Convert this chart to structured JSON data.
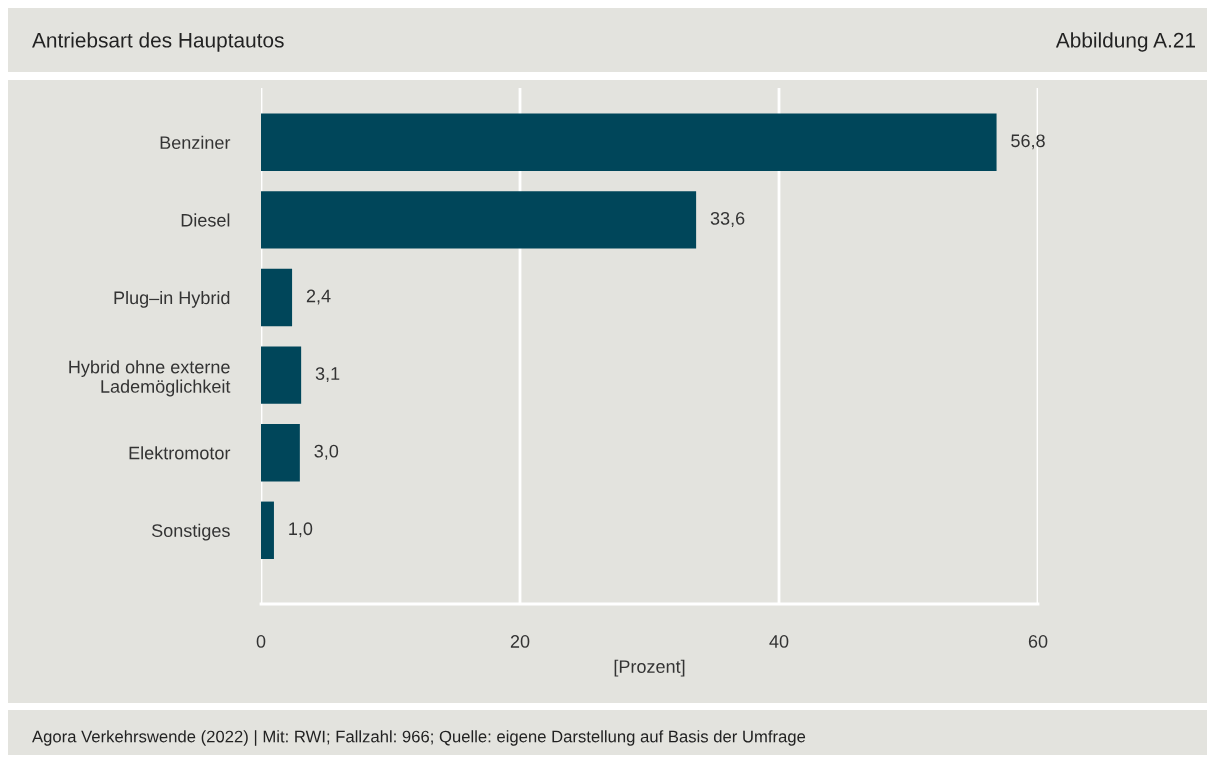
{
  "chart_data": {
    "type": "bar",
    "orientation": "horizontal",
    "title": "Antriebsart des Hauptautos",
    "subtitle": "Abbildung A.21",
    "categories": [
      "Benziner",
      "Diesel",
      "Plug–in Hybrid",
      "Hybrid ohne externe\nLademöglichkeit",
      "Elektromotor",
      "Sonstiges"
    ],
    "values": [
      56.8,
      33.6,
      2.4,
      3.1,
      3.0,
      1.0
    ],
    "value_labels": [
      "56,8",
      "33,6",
      "2,4",
      "3,1",
      "3,0",
      "1,0"
    ],
    "color": "#00465a",
    "xlim": [
      0,
      60
    ],
    "xticks": [
      0,
      20,
      40,
      60
    ],
    "xlabel": "[Prozent]",
    "grid": "x",
    "annotations": [
      "Agora Verkehrswende (2022) | Mit: RWI; Fallzahl: 966; Quelle: eigene Darstellung auf Basis der Umfrage"
    ]
  }
}
